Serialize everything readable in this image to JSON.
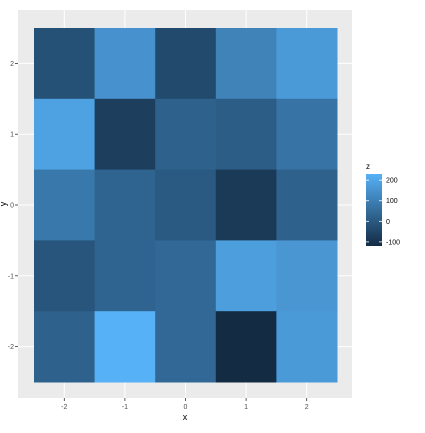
{
  "chart_data": {
    "type": "heatmap",
    "title": "",
    "xlabel": "x",
    "ylabel": "y",
    "x_categories": [
      -2,
      -1,
      0,
      1,
      2
    ],
    "y_categories": [
      2,
      1,
      0,
      -1,
      -2
    ],
    "x_tick_labels": [
      "-2",
      "-1",
      "0",
      "1",
      "2"
    ],
    "y_tick_labels": [
      "2",
      "1",
      "0",
      "-1",
      "-2"
    ],
    "z": [
      [
        -20,
        150,
        -40,
        110,
        170
      ],
      [
        190,
        -70,
        20,
        10,
        70
      ],
      [
        80,
        30,
        0,
        -80,
        20
      ],
      [
        -10,
        30,
        40,
        180,
        160
      ],
      [
        20,
        230,
        40,
        -120,
        170
      ]
    ],
    "legend": {
      "title": "z",
      "position": "right",
      "ticks": [
        200,
        100,
        0,
        -100
      ],
      "tick_labels": [
        "200",
        "100",
        "0",
        "-100"
      ],
      "range": [
        -120,
        230
      ]
    },
    "colors": {
      "low": "#132B43",
      "high": "#56B1F7",
      "panel_background": "#EBEBEB",
      "grid": "#FFFFFF"
    },
    "grid": true
  }
}
